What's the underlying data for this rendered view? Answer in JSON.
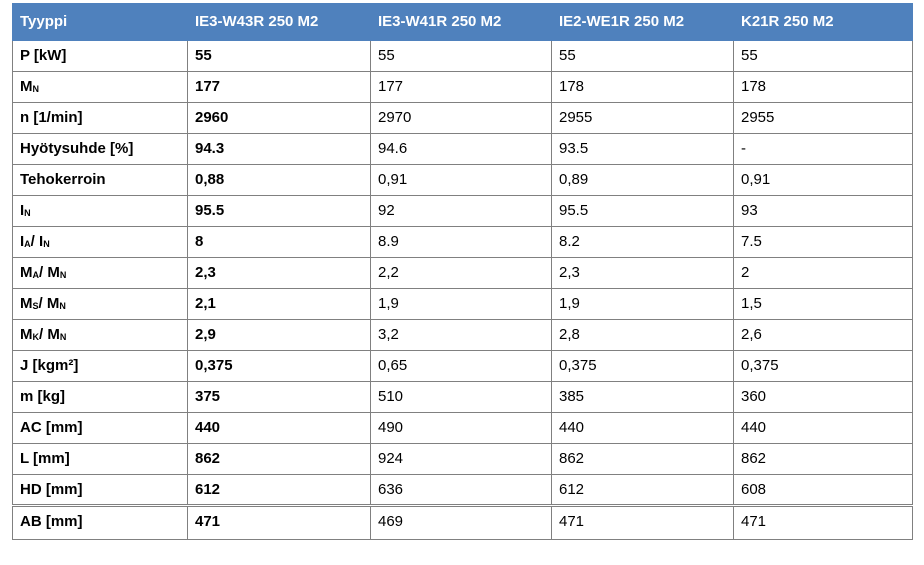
{
  "table": {
    "header": [
      "Tyyppi",
      "IE3-W43R 250 M2",
      "IE3-W41R 250 M2",
      "IE2-WE1R 250 M2",
      "K21R 250 M2"
    ],
    "rows": [
      {
        "label": [
          {
            "text": "P [kW]"
          }
        ],
        "cells": [
          "55",
          "55",
          "55",
          "55"
        ]
      },
      {
        "label": [
          {
            "text": "M"
          },
          {
            "text": "N",
            "sub": true
          }
        ],
        "cells": [
          "177",
          "177",
          "178",
          "178"
        ]
      },
      {
        "label": [
          {
            "text": "n [1/min]"
          }
        ],
        "cells": [
          "2960",
          "2970",
          "2955",
          "2955"
        ]
      },
      {
        "label": [
          {
            "text": "Hyötysuhde [%]"
          }
        ],
        "cells": [
          "94.3",
          "94.6",
          "93.5",
          "-"
        ]
      },
      {
        "label": [
          {
            "text": "Tehokerroin"
          }
        ],
        "cells": [
          "0,88",
          "0,91",
          "0,89",
          "0,91"
        ]
      },
      {
        "label": [
          {
            "text": "I"
          },
          {
            "text": "N",
            "sub": true
          }
        ],
        "cells": [
          "95.5",
          "92",
          "95.5",
          "93"
        ]
      },
      {
        "label": [
          {
            "text": "I"
          },
          {
            "text": "A",
            "sub": true
          },
          {
            "text": "/ I"
          },
          {
            "text": "N",
            "sub": true
          }
        ],
        "cells": [
          "8",
          "8.9",
          "8.2",
          "7.5"
        ]
      },
      {
        "label": [
          {
            "text": "M"
          },
          {
            "text": "A",
            "sub": true
          },
          {
            "text": "/ M"
          },
          {
            "text": "N",
            "sub": true
          }
        ],
        "cells": [
          "2,3",
          "2,2",
          "2,3",
          "2"
        ]
      },
      {
        "label": [
          {
            "text": "M"
          },
          {
            "text": "S",
            "sub": true
          },
          {
            "text": "/ M"
          },
          {
            "text": "N",
            "sub": true
          }
        ],
        "cells": [
          "2,1",
          "1,9",
          "1,9",
          "1,5"
        ]
      },
      {
        "label": [
          {
            "text": "M"
          },
          {
            "text": "K",
            "sub": true
          },
          {
            "text": "/ M"
          },
          {
            "text": "N",
            "sub": true
          }
        ],
        "cells": [
          "2,9",
          "3,2",
          "2,8",
          "2,6"
        ]
      },
      {
        "label": [
          {
            "text": "J [kgm²]"
          }
        ],
        "cells": [
          "0,375",
          "0,65",
          "0,375",
          "0,375"
        ]
      },
      {
        "label": [
          {
            "text": "m [kg]"
          }
        ],
        "cells": [
          "375",
          "510",
          "385",
          "360"
        ]
      },
      {
        "label": [
          {
            "text": "AC [mm]"
          }
        ],
        "cells": [
          "440",
          "490",
          "440",
          "440"
        ]
      },
      {
        "label": [
          {
            "text": "L [mm]"
          }
        ],
        "cells": [
          "862",
          "924",
          "862",
          "862"
        ]
      },
      {
        "label": [
          {
            "text": "HD [mm]"
          }
        ],
        "cells": [
          "612",
          "636",
          "612",
          "608"
        ]
      },
      {
        "label": [
          {
            "text": "AB [mm]"
          }
        ],
        "cells": [
          "471",
          "469",
          "471",
          "471"
        ]
      }
    ]
  }
}
